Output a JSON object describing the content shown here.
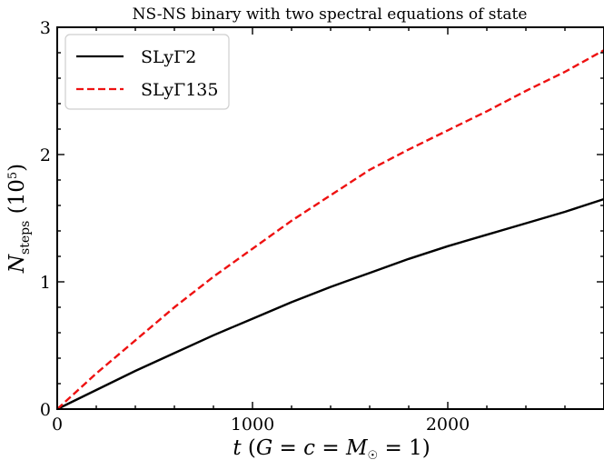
{
  "chart_data": {
    "type": "line",
    "title": "NS-NS binary with two spectral equations of state",
    "xlabel": "t (G = c = M☉ = 1)",
    "ylabel": "N_steps (10^5)",
    "xlim": [
      0,
      2800
    ],
    "ylim": [
      0,
      3
    ],
    "xticks": [
      0,
      1000,
      2000
    ],
    "yticks": [
      0,
      1,
      2,
      3
    ],
    "xtick_labels": [
      "0",
      "1000",
      "2000"
    ],
    "ytick_labels": [
      "0",
      "1",
      "2",
      "3"
    ],
    "grid": false,
    "legend_position": "top-left",
    "series": [
      {
        "name": "SLyΓ2",
        "color": "#000000",
        "dash": "solid",
        "x": [
          0,
          200,
          400,
          600,
          800,
          1000,
          1200,
          1400,
          1600,
          1800,
          2000,
          2200,
          2400,
          2600,
          2800
        ],
        "y": [
          0,
          0.15,
          0.3,
          0.44,
          0.58,
          0.71,
          0.84,
          0.96,
          1.07,
          1.18,
          1.28,
          1.37,
          1.46,
          1.55,
          1.65
        ]
      },
      {
        "name": "SLyΓ135",
        "color": "#ee1111",
        "dash": "dashed",
        "x": [
          0,
          200,
          400,
          600,
          800,
          1000,
          1200,
          1400,
          1600,
          1800,
          2000,
          2200,
          2400,
          2600,
          2800
        ],
        "y": [
          0,
          0.28,
          0.54,
          0.8,
          1.04,
          1.26,
          1.48,
          1.68,
          1.88,
          2.04,
          2.19,
          2.34,
          2.5,
          2.65,
          2.82
        ]
      }
    ]
  }
}
